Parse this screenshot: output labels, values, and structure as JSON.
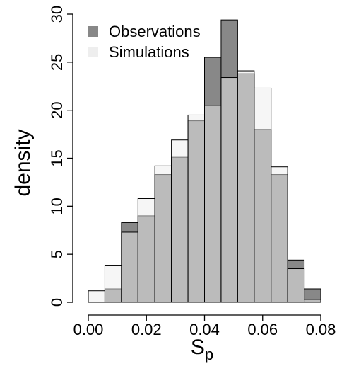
{
  "chart_data": {
    "type": "histogram",
    "ylabel": "density",
    "xlabel": "S",
    "xlabel_sub": "p",
    "bins": [
      0,
      0.0057,
      0.0114,
      0.0171,
      0.0229,
      0.0286,
      0.0343,
      0.04,
      0.0457,
      0.0514,
      0.0571,
      0.0629,
      0.0686,
      0.0743,
      0.08
    ],
    "series": [
      {
        "name": "Observations",
        "color": "#888888",
        "values": [
          0,
          1.4,
          8.3,
          9.0,
          13.3,
          15.1,
          18.9,
          25.5,
          29.4,
          23.8,
          18.0,
          13.3,
          4.4,
          1.4
        ]
      },
      {
        "name": "Simulations",
        "color": "#eeeeee",
        "values": [
          1.2,
          3.8,
          7.3,
          10.8,
          14.2,
          16.9,
          19.5,
          20.5,
          23.4,
          24.1,
          22.3,
          14.1,
          3.5,
          0.3
        ]
      }
    ],
    "xlim": [
      0,
      0.08
    ],
    "xticks": [
      {
        "value": 0,
        "label": "0.00"
      },
      {
        "value": 0.02,
        "label": "0.02"
      },
      {
        "value": 0.04,
        "label": "0.04"
      },
      {
        "value": 0.06,
        "label": "0.06"
      },
      {
        "value": 0.08,
        "label": "0.08"
      }
    ],
    "ylim": [
      0,
      30
    ],
    "yticks": [
      0,
      5,
      10,
      15,
      20,
      25,
      30
    ],
    "legend": "top-left"
  }
}
